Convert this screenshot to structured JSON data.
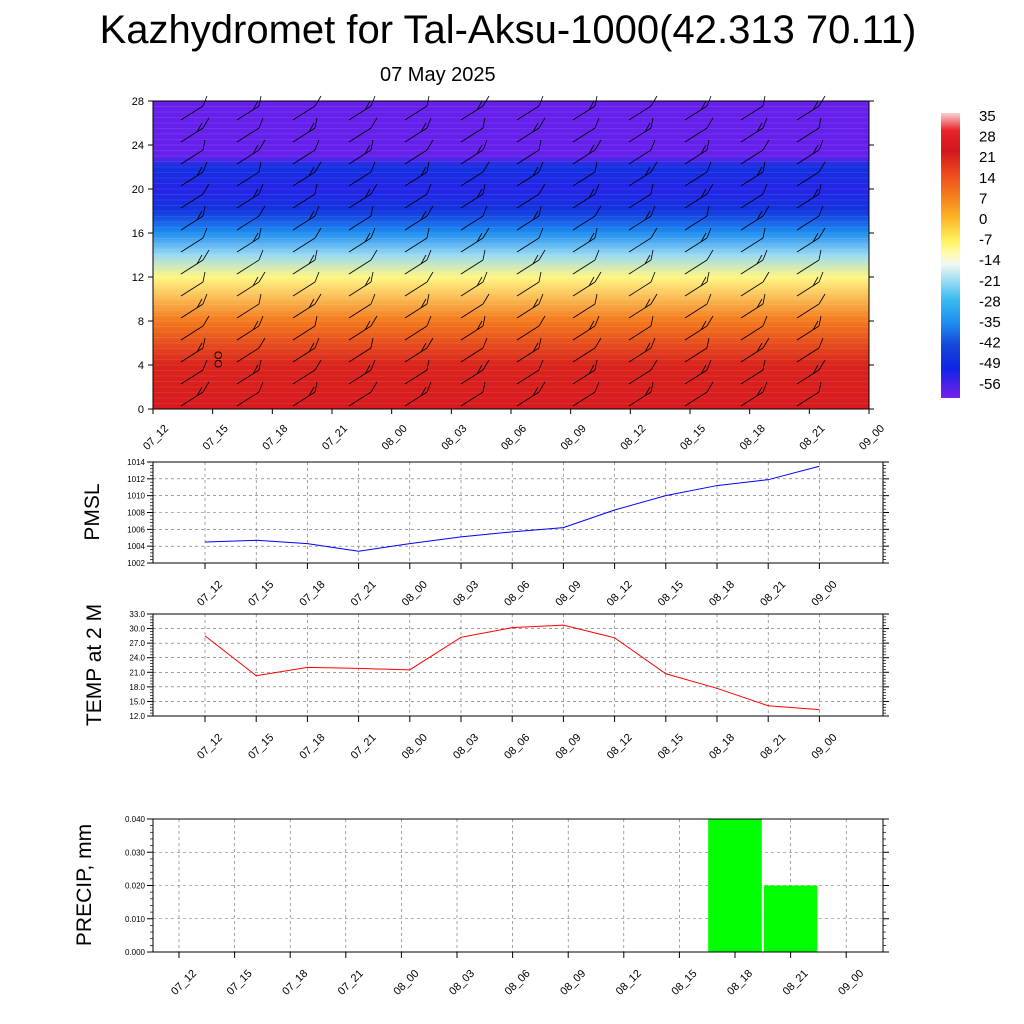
{
  "title": "Kazhydromet for Tal-Aksu-1000(42.313 70.11)",
  "subtitle": "07 May 2025",
  "time_labels": [
    "07_12",
    "07_15",
    "07_18",
    "07_21",
    "08_00",
    "08_03",
    "08_06",
    "08_09",
    "08_12",
    "08_15",
    "08_18",
    "08_21",
    "09_00"
  ],
  "chart_data": [
    {
      "type": "heatmap",
      "name": "upper-air temperature cross-section",
      "x": [
        "07_12",
        "07_15",
        "07_18",
        "07_21",
        "08_00",
        "08_03",
        "08_06",
        "08_09",
        "08_12",
        "08_15",
        "08_18",
        "08_21",
        "09_00"
      ],
      "yticks": [
        0,
        4,
        8,
        12,
        16,
        20,
        24,
        28
      ],
      "ylim": [
        0,
        28
      ],
      "colorbar": {
        "labels": [
          "35",
          "28",
          "21",
          "14",
          "7",
          "0",
          "-7",
          "-14",
          "-21",
          "-28",
          "-35",
          "-42",
          "-49",
          "-56"
        ],
        "range": [
          -60,
          38
        ],
        "stops": [
          {
            "v": 38,
            "c": "#fbd0d0"
          },
          {
            "v": 32,
            "c": "#e8242a"
          },
          {
            "v": 25,
            "c": "#d2161c"
          },
          {
            "v": 17,
            "c": "#ee4a1e"
          },
          {
            "v": 9,
            "c": "#f5801d"
          },
          {
            "v": 2,
            "c": "#fbb627"
          },
          {
            "v": -6,
            "c": "#fff261"
          },
          {
            "v": -10,
            "c": "#fffaa8"
          },
          {
            "v": -14,
            "c": "#f2f8f4"
          },
          {
            "v": -18,
            "c": "#b6e4f4"
          },
          {
            "v": -26,
            "c": "#3cbcf0"
          },
          {
            "v": -34,
            "c": "#1e8ef0"
          },
          {
            "v": -42,
            "c": "#1446d8"
          },
          {
            "v": -50,
            "c": "#1024e6"
          },
          {
            "v": -60,
            "c": "#7a20ec"
          }
        ]
      },
      "profile": [
        {
          "level": 0,
          "value": 27
        },
        {
          "level": 4,
          "value": 23
        },
        {
          "level": 8,
          "value": 10
        },
        {
          "level": 12,
          "value": -8
        },
        {
          "level": 14,
          "value": -20
        },
        {
          "level": 16,
          "value": -34
        },
        {
          "level": 18,
          "value": -46
        },
        {
          "level": 20,
          "value": -52
        },
        {
          "level": 22,
          "value": -47
        },
        {
          "level": 23,
          "value": -58
        },
        {
          "level": 28,
          "value": -58
        }
      ],
      "annotation": "OO"
    },
    {
      "type": "line",
      "ylabel": "PMSL",
      "categories": [
        "07_12",
        "07_15",
        "07_18",
        "07_21",
        "08_00",
        "08_03",
        "08_06",
        "08_09",
        "08_12",
        "08_15",
        "08_18",
        "08_21",
        "09_00"
      ],
      "values": [
        1004.5,
        1004.7,
        1004.3,
        1003.4,
        1004.3,
        1005.1,
        1005.7,
        1006.2,
        1008.3,
        1010.0,
        1011.2,
        1011.9,
        1013.5
      ],
      "yticks": [
        "1002",
        "1004",
        "1006",
        "1008",
        "1010",
        "1012",
        "1014"
      ],
      "ylim": [
        1002,
        1014
      ],
      "color": "#0000ff",
      "grid": true
    },
    {
      "type": "line",
      "ylabel": "TEMP at 2 M",
      "categories": [
        "07_12",
        "07_15",
        "07_18",
        "07_21",
        "08_00",
        "08_03",
        "08_06",
        "08_09",
        "08_12",
        "08_15",
        "08_18",
        "08_21",
        "09_00"
      ],
      "values": [
        28.5,
        20.3,
        22.0,
        21.8,
        21.5,
        28.2,
        30.2,
        30.7,
        28.1,
        20.7,
        17.7,
        14.1,
        13.3
      ],
      "yticks": [
        "12.0",
        "15.0",
        "18.0",
        "21.0",
        "24.0",
        "27.0",
        "30.0",
        "33.0"
      ],
      "ylim": [
        12,
        33
      ],
      "color": "#ff0000",
      "grid": true
    },
    {
      "type": "bar",
      "ylabel": "PRECIP, mm",
      "categories": [
        "07_12",
        "07_15",
        "07_18",
        "07_21",
        "08_00",
        "08_03",
        "08_06",
        "08_09",
        "08_12",
        "08_15",
        "08_18",
        "08_21",
        "09_00"
      ],
      "values": [
        0,
        0,
        0,
        0,
        0,
        0,
        0,
        0,
        0,
        0,
        0.04,
        0.02,
        0
      ],
      "yticks": [
        "0.000",
        "0.010",
        "0.020",
        "0.030",
        "0.040"
      ],
      "ylim": [
        0,
        0.04
      ],
      "color": "#00ff00",
      "grid": true
    }
  ]
}
